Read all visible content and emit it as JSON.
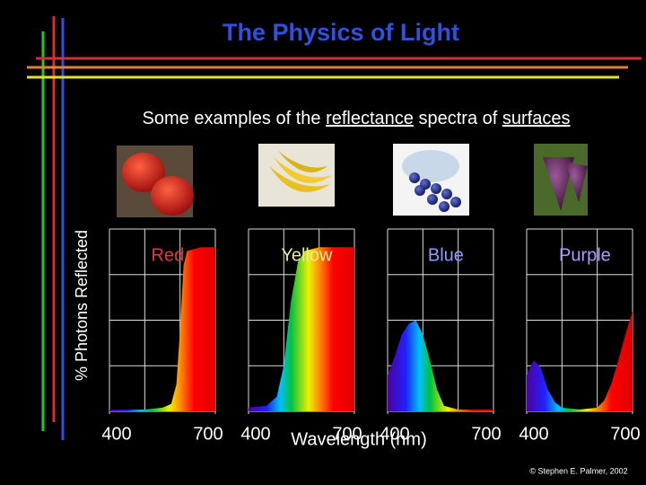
{
  "slide": {
    "title": "The Physics of Light",
    "subtitle_parts": [
      "Some examples of the ",
      "reflectance",
      " spectra of ",
      "surfaces"
    ],
    "ylabel": "% Photons Reflected",
    "xlabel": "Wavelength (nm)",
    "credit": "© Stephen E. Palmer, 2002"
  },
  "chart_data": [
    {
      "type": "area",
      "title": "Red",
      "color": "#e03a3a",
      "xlim": [
        400,
        700
      ],
      "ylim": [
        0,
        100
      ],
      "xticks": [
        400,
        700
      ],
      "grid": true,
      "x": [
        400,
        450,
        500,
        550,
        575,
        590,
        600,
        610,
        620,
        640,
        660,
        700
      ],
      "values": [
        1,
        1,
        1,
        2,
        4,
        15,
        45,
        80,
        88,
        89,
        90,
        90
      ]
    },
    {
      "type": "area",
      "title": "Yellow",
      "color": "#e8e8a0",
      "xlim": [
        400,
        700
      ],
      "ylim": [
        0,
        100
      ],
      "xticks": [
        400,
        700
      ],
      "grid": true,
      "x": [
        400,
        450,
        480,
        500,
        520,
        540,
        560,
        600,
        650,
        700
      ],
      "values": [
        2,
        3,
        8,
        25,
        60,
        82,
        88,
        90,
        90,
        90
      ]
    },
    {
      "type": "area",
      "title": "Blue",
      "color": "#8c9cff",
      "xlim": [
        400,
        700
      ],
      "ylim": [
        0,
        100
      ],
      "xticks": [
        400,
        700
      ],
      "grid": true,
      "x": [
        400,
        420,
        440,
        460,
        480,
        500,
        520,
        540,
        560,
        600,
        650,
        700
      ],
      "values": [
        20,
        30,
        42,
        48,
        50,
        42,
        28,
        12,
        3,
        1,
        1,
        1
      ]
    },
    {
      "type": "area",
      "title": "Purple",
      "color": "#a89cff",
      "xlim": [
        400,
        700
      ],
      "ylim": [
        0,
        100
      ],
      "xticks": [
        400,
        700
      ],
      "grid": true,
      "x": [
        400,
        420,
        440,
        460,
        480,
        500,
        550,
        600,
        620,
        640,
        660,
        680,
        700
      ],
      "values": [
        20,
        28,
        24,
        12,
        5,
        2,
        1,
        2,
        6,
        15,
        28,
        42,
        55
      ]
    }
  ]
}
